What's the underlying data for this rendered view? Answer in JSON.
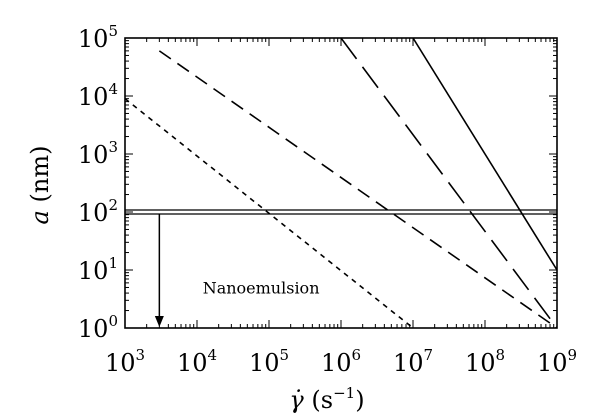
{
  "chart_data": {
    "type": "line",
    "title": "",
    "xscale": "log",
    "yscale": "log",
    "xlim": [
      1000,
      1000000000
    ],
    "ylim": [
      1,
      100000
    ],
    "grid": false,
    "xlabel": {
      "symbol": "γ̇",
      "unit_open": " (s",
      "unit_exp": "−1",
      "unit_close": ")"
    },
    "ylabel": {
      "symbol": "a",
      "unit": " (nm)"
    },
    "xticks": [
      {
        "base": "10",
        "exp": "3",
        "value": 1000
      },
      {
        "base": "10",
        "exp": "4",
        "value": 10000
      },
      {
        "base": "10",
        "exp": "5",
        "value": 100000
      },
      {
        "base": "10",
        "exp": "6",
        "value": 1000000
      },
      {
        "base": "10",
        "exp": "7",
        "value": 10000000
      },
      {
        "base": "10",
        "exp": "8",
        "value": 100000000
      },
      {
        "base": "10",
        "exp": "9",
        "value": 1000000000
      }
    ],
    "yticks": [
      {
        "base": "10",
        "exp": "0",
        "value": 1
      },
      {
        "base": "10",
        "exp": "1",
        "value": 10
      },
      {
        "base": "10",
        "exp": "2",
        "value": 100
      },
      {
        "base": "10",
        "exp": "3",
        "value": 1000
      },
      {
        "base": "10",
        "exp": "4",
        "value": 10000
      },
      {
        "base": "10",
        "exp": "5",
        "value": 100000
      }
    ],
    "series": [
      {
        "style": "solid",
        "points": [
          [
            10000000,
            100000
          ],
          [
            1000000000,
            10
          ]
        ]
      },
      {
        "style": "long-dash",
        "points": [
          [
            1000000,
            100000
          ],
          [
            1000000000,
            1
          ]
        ]
      },
      {
        "style": "medium-dash",
        "points": [
          [
            3000,
            60000
          ],
          [
            1000000000,
            1
          ]
        ]
      },
      {
        "style": "short-dash",
        "points": [
          [
            1000,
            9000
          ],
          [
            10000000,
            1
          ]
        ]
      }
    ],
    "threshold": {
      "y": 100,
      "style": "double-line"
    },
    "annotation": {
      "text": "Nanoemulsion",
      "arrow_x": 3000,
      "arrow_from_y": 100,
      "arrow_to_y": 1,
      "text_x": 12000,
      "text_y": 5
    }
  }
}
